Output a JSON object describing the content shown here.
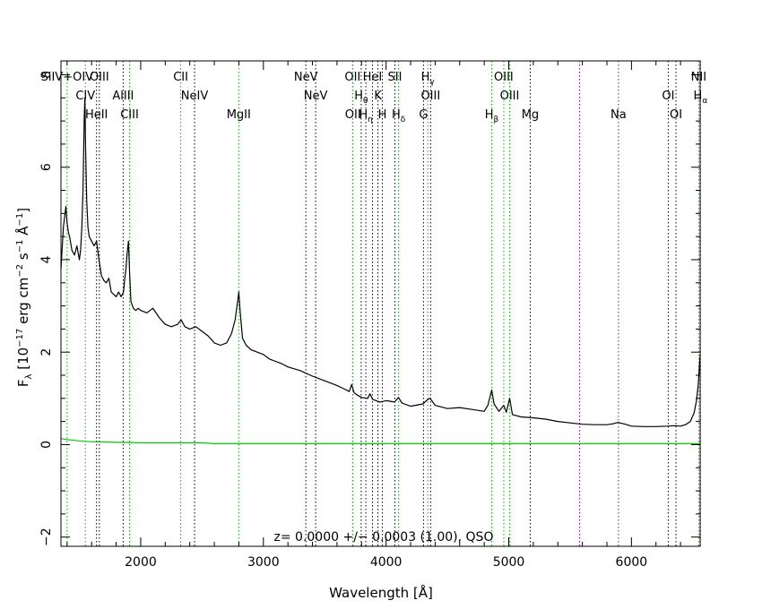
{
  "chart_data": {
    "type": "line",
    "title": "",
    "xlabel": "Wavelength [Å]",
    "ylabel_main": "F",
    "ylabel_sub": "λ",
    "ylabel_rest": " [10",
    "ylabel_exp1": "−17",
    "ylabel_mid1": " erg cm",
    "ylabel_exp2": "−2",
    "ylabel_mid2": " s",
    "ylabel_exp3": "−1",
    "ylabel_mid3": " Å",
    "ylabel_exp4": "−1",
    "ylabel_end": "]",
    "annotation": "z= 0.0000 +/− 0.0003 (1.00), QSO",
    "xlim": [
      1350,
      6560
    ],
    "ylim": [
      -2.2,
      8.3
    ],
    "xticks": [
      2000,
      3000,
      4000,
      5000,
      6000
    ],
    "yticks": [
      -2,
      0,
      2,
      4,
      6,
      8
    ],
    "grid": false,
    "colors": {
      "flux": "#000000",
      "error": "#00cc00",
      "emission_line": "#00bb00",
      "absorption_line": "#000000",
      "sky_line": "#9900cc"
    },
    "series": [
      {
        "name": "flux",
        "x": [
          1350,
          1370,
          1390,
          1400,
          1410,
          1420,
          1440,
          1460,
          1480,
          1500,
          1510,
          1520,
          1530,
          1540,
          1545,
          1550,
          1560,
          1570,
          1580,
          1600,
          1620,
          1640,
          1660,
          1680,
          1700,
          1720,
          1740,
          1760,
          1780,
          1800,
          1820,
          1840,
          1860,
          1870,
          1880,
          1890,
          1900,
          1910,
          1920,
          1940,
          1960,
          1980,
          2000,
          2050,
          2100,
          2150,
          2200,
          2250,
          2300,
          2330,
          2360,
          2400,
          2450,
          2500,
          2550,
          2600,
          2650,
          2700,
          2740,
          2770,
          2790,
          2800,
          2810,
          2830,
          2860,
          2900,
          2950,
          3000,
          3050,
          3100,
          3150,
          3200,
          3300,
          3400,
          3500,
          3600,
          3700,
          3720,
          3730,
          3740,
          3760,
          3800,
          3850,
          3869,
          3890,
          3950,
          4000,
          4070,
          4101,
          4130,
          4200,
          4300,
          4340,
          4360,
          4400,
          4500,
          4600,
          4700,
          4800,
          4830,
          4861,
          4880,
          4920,
          4959,
          4980,
          5007,
          5030,
          5100,
          5200,
          5300,
          5400,
          5500,
          5600,
          5700,
          5800,
          5850,
          5890,
          5950,
          6000,
          6100,
          6200,
          6300,
          6350,
          6400,
          6440,
          6480,
          6510,
          6530,
          6545,
          6560
        ],
        "y": [
          3.8,
          4.7,
          5.15,
          4.8,
          4.6,
          4.5,
          4.2,
          4.1,
          4.3,
          4.0,
          4.2,
          4.7,
          5.5,
          7.1,
          7.5,
          6.5,
          5.3,
          4.7,
          4.5,
          4.4,
          4.3,
          4.4,
          4.0,
          3.65,
          3.55,
          3.5,
          3.6,
          3.3,
          3.25,
          3.2,
          3.3,
          3.2,
          3.3,
          3.6,
          3.8,
          4.15,
          4.4,
          3.7,
          3.1,
          2.95,
          2.9,
          2.95,
          2.9,
          2.85,
          2.95,
          2.75,
          2.6,
          2.55,
          2.6,
          2.7,
          2.55,
          2.5,
          2.55,
          2.45,
          2.35,
          2.2,
          2.15,
          2.2,
          2.4,
          2.7,
          3.1,
          3.3,
          2.9,
          2.3,
          2.15,
          2.05,
          2.0,
          1.95,
          1.85,
          1.8,
          1.75,
          1.68,
          1.6,
          1.48,
          1.38,
          1.28,
          1.15,
          1.3,
          1.2,
          1.12,
          1.08,
          1.02,
          1.0,
          1.1,
          0.98,
          0.92,
          0.95,
          0.92,
          1.02,
          0.9,
          0.83,
          0.88,
          0.98,
          1.0,
          0.85,
          0.78,
          0.8,
          0.76,
          0.72,
          0.85,
          1.18,
          0.88,
          0.72,
          0.85,
          0.7,
          1.0,
          0.65,
          0.6,
          0.58,
          0.55,
          0.5,
          0.47,
          0.44,
          0.43,
          0.43,
          0.45,
          0.48,
          0.44,
          0.4,
          0.39,
          0.39,
          0.4,
          0.41,
          0.4,
          0.43,
          0.5,
          0.68,
          0.95,
          1.3,
          1.95
        ]
      },
      {
        "name": "error",
        "x": [
          1350,
          1400,
          1500,
          1600,
          1800,
          2000,
          2500,
          2600,
          3000,
          4000,
          5000,
          6000,
          6560
        ],
        "y": [
          0.13,
          0.11,
          0.08,
          0.06,
          0.05,
          0.04,
          0.04,
          0.02,
          0.02,
          0.02,
          0.02,
          0.02,
          0.02
        ]
      }
    ],
    "lines": [
      {
        "name": "SiIV+OIV",
        "wave": 1400,
        "row": 0,
        "color": "emission_line"
      },
      {
        "name": "CIV",
        "wave": 1549,
        "row": 1,
        "color": "emission_line"
      },
      {
        "name": "HeII",
        "wave": 1640,
        "row": 2,
        "color": "absorption_line"
      },
      {
        "name": "OIII",
        "wave": 1663,
        "row": 0,
        "color": "absorption_line"
      },
      {
        "name": "AlIII",
        "wave": 1857,
        "row": 1,
        "color": "absorption_line"
      },
      {
        "name": "CIII",
        "wave": 1909,
        "row": 2,
        "color": "emission_line"
      },
      {
        "name": "CII",
        "wave": 2326,
        "row": 0,
        "color": "emission_line"
      },
      {
        "name": "NeIV",
        "wave": 2439,
        "row": 1,
        "color": "absorption_line"
      },
      {
        "name": "MgII",
        "wave": 2799,
        "row": 2,
        "color": "emission_line"
      },
      {
        "name": "NeV",
        "wave": 3346,
        "row": 0,
        "color": "absorption_line"
      },
      {
        "name": "NeV",
        "wave": 3426,
        "row": 1,
        "color": "absorption_line"
      },
      {
        "name": "OII",
        "wave": 3727,
        "row": 0,
        "color": "emission_line"
      },
      {
        "name": "OII",
        "wave": 3730,
        "row": 2,
        "color": "emission_line"
      },
      {
        "name": "H",
        "sub": "θ",
        "wave": 3797,
        "row": 1,
        "color": "absorption_line"
      },
      {
        "name": "H",
        "sub": "η",
        "wave": 3835,
        "row": 2,
        "color": "absorption_line"
      },
      {
        "name": "HeI",
        "wave": 3889,
        "row": 0,
        "color": "absorption_line"
      },
      {
        "name": "K",
        "wave": 3934,
        "row": 1,
        "color": "absorption_line"
      },
      {
        "name": "H",
        "wave": 3970,
        "row": 2,
        "color": "absorption_line"
      },
      {
        "name": "SII",
        "wave": 4072,
        "row": 0,
        "color": "absorption_line"
      },
      {
        "name": "H",
        "sub": "δ",
        "wave": 4102,
        "row": 2,
        "color": "emission_line"
      },
      {
        "name": "G",
        "wave": 4305,
        "row": 2,
        "color": "absorption_line"
      },
      {
        "name": "H",
        "sub": "γ",
        "wave": 4340,
        "row": 0,
        "color": "emission_line"
      },
      {
        "name": "OIII",
        "wave": 4363,
        "row": 1,
        "color": "absorption_line"
      },
      {
        "name": "H",
        "sub": "β",
        "wave": 4861,
        "row": 2,
        "color": "emission_line"
      },
      {
        "name": "OIII",
        "wave": 4959,
        "row": 0,
        "color": "emission_line"
      },
      {
        "name": "OIII",
        "wave": 5007,
        "row": 1,
        "color": "emission_line"
      },
      {
        "name": "Mg",
        "wave": 5175,
        "row": 2,
        "color": "absorption_line"
      },
      {
        "name": "",
        "wave": 5577,
        "row": 0,
        "color": "sky_line"
      },
      {
        "name": "Na",
        "wave": 5894,
        "row": 2,
        "color": "sky_line"
      },
      {
        "name": "OI",
        "wave": 6300,
        "row": 1,
        "color": "absorption_line"
      },
      {
        "name": "OI",
        "wave": 6363,
        "row": 2,
        "color": "absorption_line"
      },
      {
        "name": "NII",
        "wave": 6548,
        "row": 0,
        "color": "emission_line"
      },
      {
        "name": "H",
        "sub": "α",
        "wave": 6563,
        "row": 1,
        "color": "emission_line"
      }
    ]
  }
}
